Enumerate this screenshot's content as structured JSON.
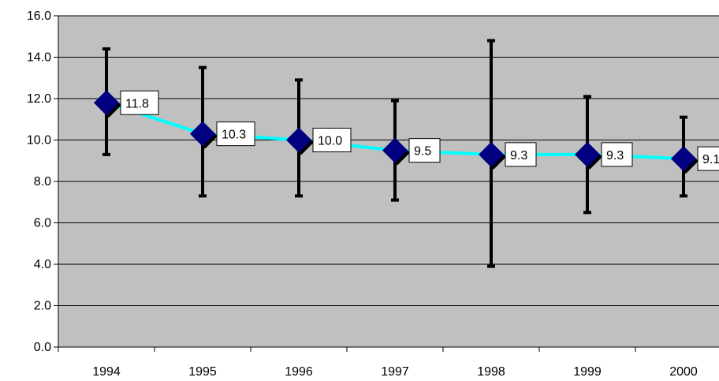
{
  "chart_data": {
    "type": "line",
    "categories": [
      "1994",
      "1995",
      "1996",
      "1997",
      "1998",
      "1999",
      "2000"
    ],
    "series": [
      {
        "values": [
          11.8,
          10.3,
          10.0,
          9.5,
          9.3,
          9.3,
          9.1
        ],
        "data_labels": [
          "11.8",
          "10.3",
          "10.0",
          "9.5",
          "9.3",
          "9.3",
          "9.1"
        ],
        "error_low": [
          9.3,
          7.3,
          7.3,
          7.1,
          3.9,
          6.5,
          7.3
        ],
        "error_high": [
          14.4,
          13.5,
          12.9,
          11.9,
          14.8,
          12.1,
          11.1
        ],
        "line_color": "#00ffff",
        "marker_color": "#000080",
        "marker": "diamond"
      }
    ],
    "yticks": [
      "0.0",
      "2.0",
      "4.0",
      "6.0",
      "8.0",
      "10.0",
      "12.0",
      "14.0",
      "16.0"
    ],
    "ylim": [
      0,
      16
    ],
    "grid": true,
    "legend": "none",
    "plot_background": "#c0c0c0",
    "gridline_color": "#000000",
    "error_bar_color": "#000000"
  }
}
